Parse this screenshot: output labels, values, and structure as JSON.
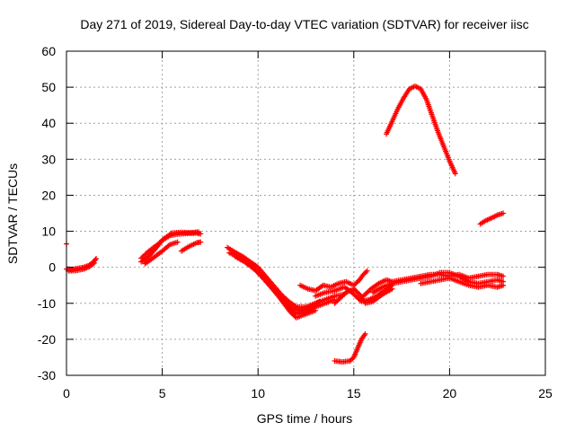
{
  "chart_data": {
    "type": "scatter",
    "title": "Day 271 of 2019, Sidereal Day-to-day VTEC variation (SDTVAR) for receiver iisc",
    "xlabel": "GPS time / hours",
    "ylabel": "SDTVAR / TECUs",
    "xlim": [
      0,
      25
    ],
    "ylim": [
      -30,
      60
    ],
    "x_ticks": [
      0,
      5,
      10,
      15,
      20,
      25
    ],
    "y_ticks": [
      -30,
      -20,
      -10,
      0,
      10,
      20,
      30,
      40,
      50,
      60
    ],
    "x_tick_labels": [
      "0",
      "5",
      "10",
      "15",
      "20",
      "25"
    ],
    "y_tick_labels": [
      "-30",
      "-20",
      "-10",
      "0",
      "10",
      "20",
      "30",
      "40",
      "50",
      "60"
    ],
    "grid": true,
    "marker": "+",
    "series_color": "#ff0000",
    "series": [
      {
        "arcs": [
          [
            [
              0.0,
              -0.5
            ],
            [
              0.3,
              -0.6
            ],
            [
              0.6,
              -0.3
            ],
            [
              0.9,
              0.0
            ],
            [
              1.2,
              0.6
            ],
            [
              1.4,
              1.5
            ],
            [
              1.55,
              2.4
            ]
          ],
          [
            [
              0.1,
              -1.0
            ],
            [
              0.5,
              -0.9
            ],
            [
              0.9,
              -0.5
            ],
            [
              1.2,
              0.2
            ],
            [
              1.45,
              1.2
            ]
          ],
          [
            [
              3.9,
              1.5
            ],
            [
              4.3,
              3.0
            ],
            [
              4.7,
              5.5
            ],
            [
              5.0,
              7.5
            ],
            [
              5.4,
              8.8
            ],
            [
              5.8,
              9.2
            ],
            [
              6.3,
              9.4
            ],
            [
              6.8,
              9.5
            ],
            [
              7.0,
              9.3
            ]
          ],
          [
            [
              3.9,
              2.5
            ],
            [
              4.3,
              4.5
            ],
            [
              4.8,
              6.5
            ],
            [
              5.1,
              8.0
            ],
            [
              5.5,
              9.5
            ],
            [
              6.0,
              9.7
            ],
            [
              6.5,
              9.6
            ],
            [
              6.9,
              9.8
            ]
          ],
          [
            [
              4.1,
              1.0
            ],
            [
              4.5,
              2.5
            ],
            [
              5.0,
              4.5
            ],
            [
              5.4,
              6.3
            ],
            [
              5.8,
              7.0
            ]
          ],
          [
            [
              6.0,
              4.5
            ],
            [
              6.4,
              5.8
            ],
            [
              6.8,
              6.8
            ],
            [
              7.0,
              7.0
            ]
          ],
          [
            [
              8.4,
              5.5
            ],
            [
              8.8,
              4.2
            ],
            [
              9.2,
              3.0
            ],
            [
              9.6,
              1.5
            ],
            [
              10.0,
              0.0
            ],
            [
              10.4,
              -2.5
            ],
            [
              10.8,
              -5.0
            ],
            [
              11.2,
              -7.5
            ],
            [
              11.6,
              -9.5
            ],
            [
              12.0,
              -11.0
            ],
            [
              12.5,
              -11.0
            ],
            [
              13.0,
              -10.0
            ],
            [
              13.5,
              -9.0
            ],
            [
              14.0,
              -8.0
            ],
            [
              14.5,
              -7.5
            ]
          ],
          [
            [
              8.5,
              4.0
            ],
            [
              9.0,
              2.8
            ],
            [
              9.5,
              1.0
            ],
            [
              10.0,
              -1.5
            ],
            [
              10.5,
              -4.5
            ],
            [
              11.0,
              -7.5
            ],
            [
              11.5,
              -10.5
            ],
            [
              12.0,
              -13.0
            ],
            [
              12.5,
              -12.5
            ],
            [
              13.0,
              -11.0
            ],
            [
              13.5,
              -10.0
            ],
            [
              14.0,
              -9.0
            ]
          ],
          [
            [
              8.8,
              3.0
            ],
            [
              9.3,
              1.5
            ],
            [
              9.8,
              -0.5
            ],
            [
              10.3,
              -3.0
            ],
            [
              10.8,
              -6.0
            ],
            [
              11.3,
              -9.0
            ],
            [
              11.8,
              -11.5
            ],
            [
              12.2,
              -12.0
            ],
            [
              12.7,
              -11.0
            ],
            [
              13.2,
              -9.5
            ]
          ],
          [
            [
              10.2,
              -2.0
            ],
            [
              10.7,
              -5.5
            ],
            [
              11.2,
              -9.0
            ],
            [
              11.7,
              -12.5
            ],
            [
              12.0,
              -14.0
            ],
            [
              12.5,
              -13.0
            ],
            [
              13.0,
              -12.0
            ]
          ],
          [
            [
              12.2,
              -5.0
            ],
            [
              12.6,
              -6.0
            ],
            [
              13.0,
              -6.5
            ],
            [
              13.4,
              -5.0
            ],
            [
              13.8,
              -5.5
            ],
            [
              14.2,
              -4.5
            ],
            [
              14.6,
              -4.0
            ],
            [
              15.0,
              -5.0
            ],
            [
              15.3,
              -3.5
            ],
            [
              15.5,
              -2.0
            ],
            [
              15.7,
              -1.0
            ]
          ],
          [
            [
              13.0,
              -8.0
            ],
            [
              13.5,
              -7.0
            ],
            [
              14.0,
              -6.5
            ],
            [
              14.5,
              -5.5
            ],
            [
              14.8,
              -6.5
            ],
            [
              15.1,
              -8.0
            ],
            [
              15.4,
              -9.5
            ],
            [
              15.8,
              -9.0
            ],
            [
              16.2,
              -8.0
            ],
            [
              16.6,
              -6.5
            ],
            [
              17.0,
              -5.0
            ]
          ],
          [
            [
              14.0,
              -10.0
            ],
            [
              14.3,
              -8.5
            ],
            [
              14.6,
              -7.0
            ],
            [
              15.0,
              -6.0
            ],
            [
              15.3,
              -7.5
            ],
            [
              15.6,
              -10.0
            ],
            [
              16.0,
              -9.5
            ],
            [
              16.5,
              -7.5
            ],
            [
              17.0,
              -6.0
            ]
          ],
          [
            [
              15.5,
              -8.0
            ],
            [
              15.9,
              -6.0
            ],
            [
              16.3,
              -4.5
            ],
            [
              16.7,
              -3.5
            ],
            [
              17.0,
              -4.0
            ],
            [
              17.5,
              -3.5
            ],
            [
              18.0,
              -3.0
            ],
            [
              18.5,
              -2.5
            ],
            [
              19.0,
              -2.0
            ],
            [
              19.5,
              -2.0
            ],
            [
              20.0,
              -2.5
            ],
            [
              20.5,
              -2.0
            ],
            [
              21.0,
              -3.0
            ],
            [
              21.5,
              -2.5
            ],
            [
              22.0,
              -2.0
            ],
            [
              22.5,
              -2.0
            ],
            [
              22.8,
              -2.5
            ]
          ],
          [
            [
              16.0,
              -7.0
            ],
            [
              16.5,
              -5.5
            ],
            [
              17.0,
              -4.5
            ],
            [
              17.5,
              -4.0
            ],
            [
              18.0,
              -3.5
            ],
            [
              18.5,
              -3.0
            ],
            [
              19.0,
              -2.5
            ],
            [
              19.5,
              -1.5
            ],
            [
              20.0,
              -1.5
            ],
            [
              20.5,
              -2.5
            ],
            [
              21.0,
              -4.0
            ],
            [
              21.5,
              -4.5
            ],
            [
              22.0,
              -4.0
            ],
            [
              22.5,
              -3.5
            ],
            [
              22.8,
              -4.0
            ]
          ],
          [
            [
              18.5,
              -4.5
            ],
            [
              19.0,
              -4.0
            ],
            [
              19.5,
              -3.5
            ],
            [
              20.0,
              -3.0
            ],
            [
              20.5,
              -4.0
            ],
            [
              21.0,
              -5.0
            ],
            [
              21.5,
              -5.5
            ],
            [
              22.0,
              -5.0
            ],
            [
              22.5,
              -5.5
            ],
            [
              22.8,
              -5.0
            ]
          ],
          [
            [
              14.0,
              -26.0
            ],
            [
              14.4,
              -26.3
            ],
            [
              14.8,
              -26.0
            ],
            [
              15.0,
              -25.0
            ],
            [
              15.2,
              -22.5
            ],
            [
              15.4,
              -20.0
            ],
            [
              15.6,
              -18.5
            ]
          ],
          [
            [
              16.7,
              37.0
            ],
            [
              17.0,
              40.5
            ],
            [
              17.3,
              44.0
            ],
            [
              17.6,
              47.0
            ],
            [
              17.9,
              49.5
            ],
            [
              18.2,
              50.3
            ],
            [
              18.5,
              49.5
            ],
            [
              18.8,
              46.5
            ],
            [
              19.1,
              42.0
            ],
            [
              19.4,
              37.5
            ],
            [
              19.7,
              33.5
            ],
            [
              20.0,
              29.5
            ],
            [
              20.3,
              26.0
            ]
          ],
          [
            [
              21.6,
              12.0
            ],
            [
              21.9,
              13.0
            ],
            [
              22.2,
              13.7
            ],
            [
              22.5,
              14.5
            ],
            [
              22.8,
              15.0
            ]
          ],
          [
            [
              0.0,
              6.5
            ]
          ]
        ]
      }
    ]
  }
}
